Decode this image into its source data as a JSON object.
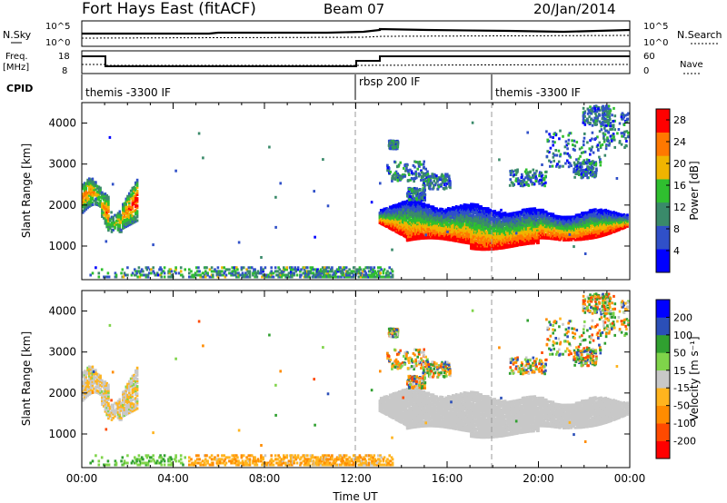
{
  "header": {
    "station": "Fort Hays East (fitACF)",
    "beam": "Beam 07",
    "date": "20/Jan/2014"
  },
  "noise_panel": {
    "left_label": "N.Sky",
    "right_label": "N.Search",
    "left_ticks": [
      "10^5",
      "10^0"
    ],
    "right_ticks": [
      "10^5",
      "10^0"
    ]
  },
  "freq_panel": {
    "left_label_1": "Freq.",
    "left_label_2": "[MHz]",
    "right_label": "Nave",
    "left_ticks": [
      "18",
      "8"
    ],
    "right_ticks": [
      "60",
      "0"
    ]
  },
  "cpid_panel": {
    "label": "CPID",
    "segments": [
      {
        "name": "themis -3300 IF",
        "start_hour": 0
      },
      {
        "name": "rbsp 200 IF",
        "start_hour": 12
      },
      {
        "name": "themis -3300 IF",
        "start_hour": 18
      }
    ]
  },
  "colors": {
    "power": [
      "#0000ff",
      "#3050c8",
      "#3a8a6a",
      "#2fbf2f",
      "#f0b400",
      "#ff7800",
      "#ff0000"
    ],
    "velocity": [
      "#ff0000",
      "#ff4a00",
      "#ff8c00",
      "#ffb41e",
      "#c8c8c8",
      "#7fd44a",
      "#30a030",
      "#2b4fb8",
      "#0000ff"
    ]
  },
  "chart_data": [
    {
      "type": "heatmap",
      "name": "power",
      "xlabel": "",
      "ylabel": "Slant Range [km]",
      "xlim": [
        0,
        24
      ],
      "ylim": [
        180,
        4500
      ],
      "yticks": [
        1000,
        2000,
        3000,
        4000
      ],
      "colorbar_label": "Power [dB]",
      "colorbar_ticks": [
        "4",
        "8",
        "12",
        "16",
        "20",
        "24",
        "28"
      ],
      "colorbar_range": [
        0,
        30
      ]
    },
    {
      "type": "heatmap",
      "name": "velocity",
      "xlabel": "Time UT",
      "ylabel": "Slant Range [km]",
      "xlim": [
        0,
        24
      ],
      "ylim": [
        180,
        4500
      ],
      "yticks": [
        1000,
        2000,
        3000,
        4000
      ],
      "xticks": [
        "00:00",
        "04:00",
        "08:00",
        "12:00",
        "16:00",
        "20:00",
        "00:00"
      ],
      "colorbar_label": "Velocity [m s⁻¹]",
      "colorbar_ticks": [
        "200",
        "100",
        "50",
        "15",
        "-15",
        "-50",
        "-100",
        "-200"
      ],
      "colorbar_range": [
        -250,
        250
      ]
    }
  ]
}
